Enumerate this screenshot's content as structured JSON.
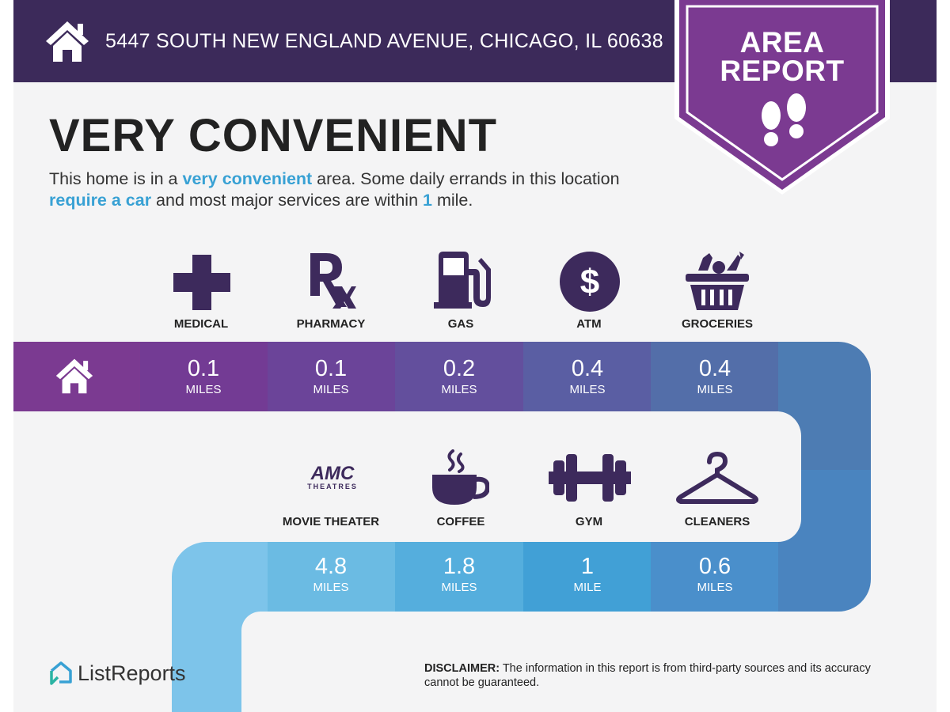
{
  "header": {
    "address": "5447 SOUTH NEW ENGLAND AVENUE, CHICAGO, IL 60638",
    "badge_line1": "AREA",
    "badge_line2": "REPORT"
  },
  "summary": {
    "title": "VERY CONVENIENT",
    "desc_1": "This home is in a ",
    "desc_hl1": "very convenient",
    "desc_2": " area. Some daily errands in this location ",
    "desc_hl2": "require a car",
    "desc_3": " and most major services are within ",
    "desc_hl3": "1",
    "desc_4": " mile."
  },
  "row1": [
    {
      "label": "MEDICAL",
      "value": "0.1",
      "unit": "MILES",
      "icon": "medical-cross-icon"
    },
    {
      "label": "PHARMACY",
      "value": "0.1",
      "unit": "MILES",
      "icon": "rx-icon"
    },
    {
      "label": "GAS",
      "value": "0.2",
      "unit": "MILES",
      "icon": "gas-pump-icon"
    },
    {
      "label": "ATM",
      "value": "0.4",
      "unit": "MILES",
      "icon": "dollar-icon"
    },
    {
      "label": "GROCERIES",
      "value": "0.4",
      "unit": "MILES",
      "icon": "grocery-basket-icon"
    }
  ],
  "row2": [
    {
      "label": "MOVIE THEATER",
      "value": "4.8",
      "unit": "MILES",
      "icon": "amc-logo-icon",
      "logo_text1": "AMC",
      "logo_text2": "THEATRES"
    },
    {
      "label": "COFFEE",
      "value": "1.8",
      "unit": "MILES",
      "icon": "coffee-cup-icon"
    },
    {
      "label": "GYM",
      "value": "1",
      "unit": "MILE",
      "icon": "dumbbell-icon"
    },
    {
      "label": "CLEANERS",
      "value": "0.6",
      "unit": "MILES",
      "icon": "hanger-icon"
    }
  ],
  "footer": {
    "brand": "ListReports",
    "disclaimer_label": "DISCLAIMER:",
    "disclaimer_text": " The information in this report is from third-party sources and its accuracy cannot be guaranteed."
  },
  "colors": {
    "header_bg": "#3c2a5a",
    "badge_purple": "#7b3a91",
    "icon_purple": "#3d2a5c",
    "highlight_blue": "#38a1d4"
  }
}
